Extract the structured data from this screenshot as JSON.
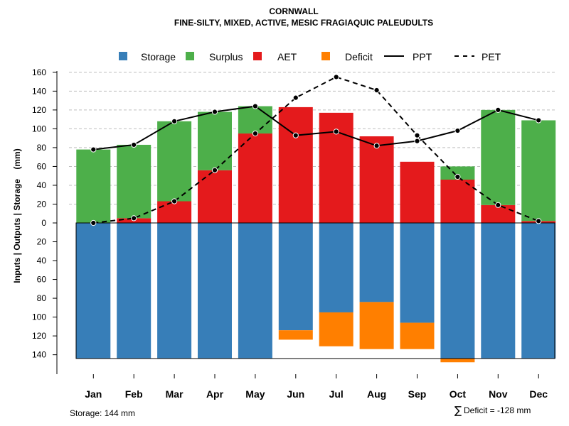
{
  "chart_data": {
    "type": "bar",
    "title": "CORNWALL",
    "subtitle": "FINE-SILTY, MIXED, ACTIVE, MESIC FRAGIAQUIC PALEUDULTS",
    "ylabel": "Inputs | Outputs | Storage    (mm)",
    "categories": [
      "Jan",
      "Feb",
      "Mar",
      "Apr",
      "May",
      "Jun",
      "Jul",
      "Aug",
      "Sep",
      "Oct",
      "Nov",
      "Dec"
    ],
    "y_ticks_positive": [
      "160",
      "140",
      "120",
      "100",
      "80",
      "60",
      "40",
      "20",
      "0"
    ],
    "y_ticks_negative": [
      "20",
      "40",
      "60",
      "80",
      "100",
      "120",
      "140"
    ],
    "ylim": [
      -144,
      160
    ],
    "grid": true,
    "legend_position": "top",
    "colors": {
      "storage": "#377EB8",
      "surplus": "#4DAF4A",
      "aet": "#E41A1C",
      "deficit": "#FF7F00",
      "line": "#000000",
      "grid": "#bfbfbf"
    },
    "legend": [
      {
        "key": "storage",
        "label": "Storage",
        "kind": "box"
      },
      {
        "key": "surplus",
        "label": "Surplus",
        "kind": "box"
      },
      {
        "key": "aet",
        "label": "AET",
        "kind": "box"
      },
      {
        "key": "deficit",
        "label": "Deficit",
        "kind": "box"
      },
      {
        "key": "ppt",
        "label": "PPT",
        "kind": "solid"
      },
      {
        "key": "pet",
        "label": "PET",
        "kind": "dashed"
      }
    ],
    "series": [
      {
        "name": "AET",
        "values": [
          0,
          5,
          23,
          56,
          95,
          123,
          117,
          92,
          65,
          46,
          19,
          2
        ]
      },
      {
        "name": "Surplus",
        "values": [
          78,
          78,
          85,
          62,
          29,
          0,
          0,
          0,
          0,
          14,
          101,
          107
        ]
      },
      {
        "name": "Storage",
        "values": [
          144,
          144,
          144,
          144,
          144,
          114,
          95,
          84,
          106,
          144,
          144,
          144
        ]
      },
      {
        "name": "Deficit",
        "values": [
          0,
          0,
          0,
          0,
          0,
          10,
          36,
          50,
          28,
          4,
          0,
          0
        ]
      },
      {
        "name": "PPT",
        "values": [
          78,
          83,
          108,
          118,
          124,
          93,
          97,
          82,
          87,
          98,
          120,
          109
        ]
      },
      {
        "name": "PET",
        "values": [
          0,
          5,
          23,
          56,
          95,
          133,
          155,
          141,
          93,
          49,
          19,
          2
        ]
      }
    ],
    "annotations": {
      "storage": "Storage: 144 mm",
      "deficit_symbol": "∑",
      "deficit": "Deficit = -128 mm"
    }
  }
}
